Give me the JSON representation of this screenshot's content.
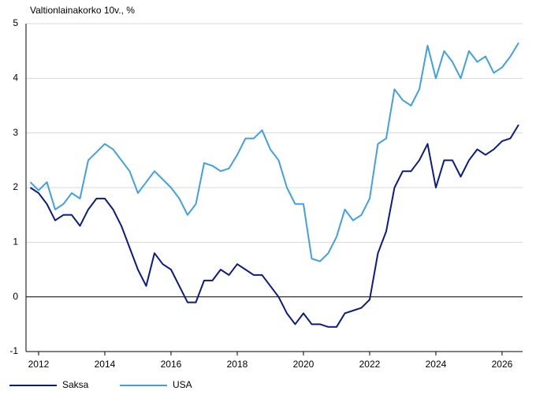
{
  "chart_data": {
    "type": "line",
    "title": "Valtionlainakorko 10v., %",
    "x": [
      2011.75,
      2012,
      2012.25,
      2012.5,
      2012.75,
      2013,
      2013.25,
      2013.5,
      2013.75,
      2014,
      2014.25,
      2014.5,
      2014.75,
      2015,
      2015.25,
      2015.5,
      2015.75,
      2016,
      2016.25,
      2016.5,
      2016.75,
      2017,
      2017.25,
      2017.5,
      2017.75,
      2018,
      2018.25,
      2018.5,
      2018.75,
      2019,
      2019.25,
      2019.5,
      2019.75,
      2020,
      2020.25,
      2020.5,
      2020.75,
      2021,
      2021.25,
      2021.5,
      2021.75,
      2022,
      2022.25,
      2022.5,
      2022.75,
      2023,
      2023.25,
      2023.5,
      2023.75,
      2024,
      2024.25,
      2024.5,
      2024.75,
      2025,
      2025.25,
      2025.5,
      2025.75,
      2026,
      2026.25,
      2026.5
    ],
    "series": [
      {
        "name": "Saksa",
        "color": "#0a1a8c",
        "values": [
          2.0,
          1.9,
          1.7,
          1.4,
          1.5,
          1.5,
          1.3,
          1.6,
          1.8,
          1.8,
          1.6,
          1.3,
          0.9,
          0.5,
          0.2,
          0.8,
          0.6,
          0.5,
          0.2,
          -0.1,
          -0.1,
          0.3,
          0.3,
          0.5,
          0.4,
          0.6,
          0.5,
          0.4,
          0.4,
          0.2,
          0.0,
          -0.3,
          -0.5,
          -0.3,
          -0.5,
          -0.5,
          -0.55,
          -0.55,
          -0.3,
          -0.25,
          -0.2,
          -0.05,
          0.8,
          1.2,
          2.0,
          2.3,
          2.3,
          2.5,
          2.8,
          2.0,
          2.5,
          2.5,
          2.2,
          2.5,
          2.7,
          2.6,
          2.7,
          2.85,
          2.9,
          3.15
        ]
      },
      {
        "name": "USA",
        "color": "#3fa0e8",
        "values": [
          2.1,
          1.95,
          2.1,
          1.6,
          1.7,
          1.9,
          1.8,
          2.5,
          2.65,
          2.8,
          2.7,
          2.5,
          2.3,
          1.9,
          2.1,
          2.3,
          2.15,
          2.0,
          1.8,
          1.5,
          1.7,
          2.45,
          2.4,
          2.3,
          2.35,
          2.6,
          2.9,
          2.9,
          3.05,
          2.7,
          2.5,
          2.0,
          1.7,
          1.7,
          0.7,
          0.65,
          0.8,
          1.1,
          1.6,
          1.4,
          1.5,
          1.8,
          2.8,
          2.9,
          3.8,
          3.6,
          3.5,
          3.8,
          4.6,
          4.0,
          4.5,
          4.3,
          4.0,
          4.5,
          4.3,
          4.4,
          4.1,
          4.2,
          4.4,
          4.65
        ]
      }
    ],
    "xlim": [
      2011.62,
      2026.62
    ],
    "xticks": [
      2012,
      2014,
      2016,
      2018,
      2020,
      2022,
      2024,
      2026
    ],
    "ylim": [
      -1,
      5
    ],
    "yticks": [
      -1,
      0,
      1,
      2,
      3,
      4,
      5
    ],
    "grid": true
  }
}
